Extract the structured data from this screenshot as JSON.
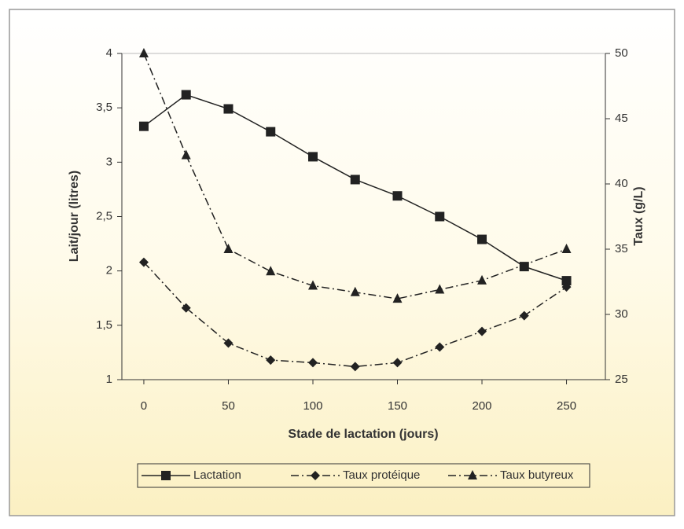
{
  "chart_data": {
    "type": "line",
    "x_label": "Stade de lactation (jours)",
    "y_label": "Lait/jour (litres)",
    "y2_label": "Taux (g/L)",
    "x": [
      0,
      25,
      50,
      75,
      100,
      125,
      150,
      175,
      200,
      225,
      250
    ],
    "series": [
      {
        "name": "Lactation",
        "color": "#222222",
        "marker": "square",
        "line_style": "solid",
        "values": [
          3.33,
          3.62,
          3.49,
          3.28,
          3.05,
          2.84,
          2.69,
          2.5,
          2.29,
          2.04,
          1.91
        ]
      },
      {
        "name": "Taux protéique",
        "color": "#222222",
        "marker": "diamond",
        "line_style": "dashdot",
        "axis": "y2",
        "values": [
          34.0,
          30.5,
          27.8,
          26.5,
          26.3,
          26.0,
          26.3,
          27.5,
          28.7,
          29.9,
          32.1
        ]
      },
      {
        "name": "Taux butyreux",
        "color": "#222222",
        "marker": "triangle",
        "line_style": "dashdot",
        "axis": "y2",
        "x": [
          0,
          25,
          50,
          75,
          100,
          125,
          150,
          175,
          200,
          250
        ],
        "values": [
          50,
          42.2,
          35.0,
          33.3,
          32.2,
          31.7,
          31.2,
          31.9,
          32.6,
          35.0
        ]
      }
    ],
    "xlim": [
      -13,
      273
    ],
    "xticks": [
      0,
      50,
      100,
      150,
      200,
      250
    ],
    "ylim": [
      1,
      4
    ],
    "yticks": [
      1,
      {
        "value": 1.5,
        "label": "1,5"
      },
      2,
      {
        "value": 2.5,
        "label": "2,5"
      },
      3,
      {
        "value": 3.5,
        "label": "3,5"
      },
      4
    ],
    "y2lim": [
      25,
      50
    ],
    "y2ticks": [
      25,
      30,
      35,
      40,
      45,
      50
    ],
    "legend": "bottom"
  }
}
